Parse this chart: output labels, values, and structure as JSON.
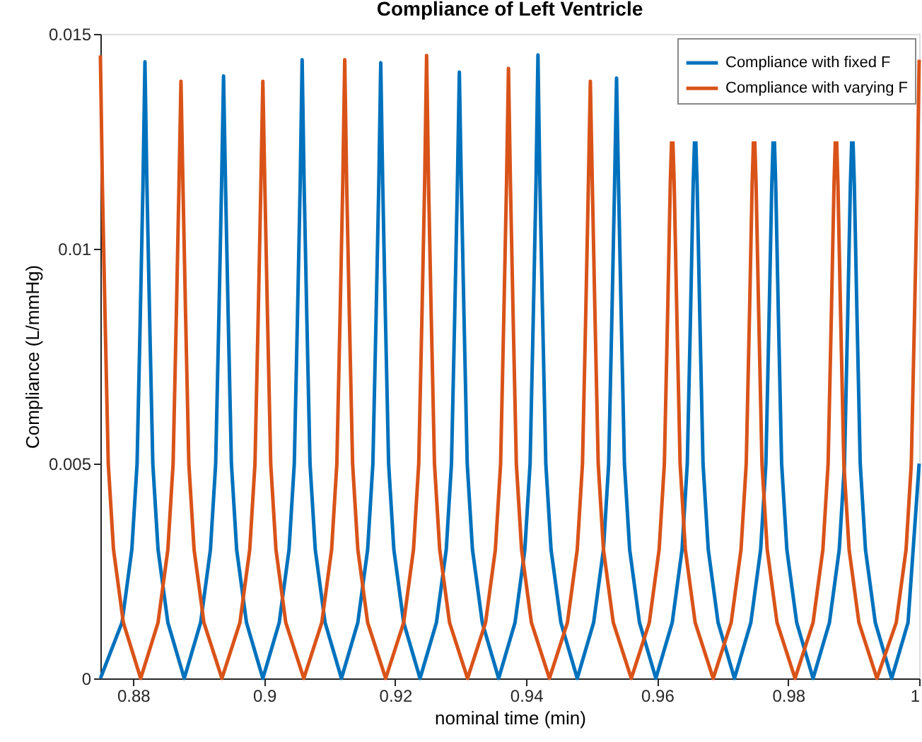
{
  "chart_data": {
    "type": "line",
    "title": "Compliance of Left Ventricle",
    "xlabel": "nominal time (min)",
    "ylabel": "Compliance (L/mmHg)",
    "xlim": [
      0.875,
      1
    ],
    "xticks": [
      0.88,
      0.9,
      0.92,
      0.94,
      0.96,
      0.98,
      1
    ],
    "ylim": [
      0,
      0.015
    ],
    "yticks": [
      0,
      0.005,
      0.01,
      0.015
    ],
    "grid": false,
    "legend": "top right",
    "marker": "none",
    "line_style": "solid",
    "series": [
      {
        "name": "Compliance with fixed F",
        "color": "#0072bd",
        "x": [
          0.875,
          0.8783,
          0.8798,
          0.8806,
          0.8811,
          0.8815,
          0.8818,
          0.8821,
          0.8825,
          0.883,
          0.8838,
          0.8853,
          0.8878,
          0.8903,
          0.8918,
          0.8926,
          0.8931,
          0.8935,
          0.8938,
          0.8941,
          0.8945,
          0.895,
          0.8958,
          0.8973,
          0.8998,
          0.9023,
          0.9038,
          0.9046,
          0.9051,
          0.9055,
          0.9058,
          0.9061,
          0.9065,
          0.907,
          0.9078,
          0.9093,
          0.9118,
          0.9143,
          0.9158,
          0.9166,
          0.9171,
          0.9175,
          0.9178,
          0.9181,
          0.9185,
          0.919,
          0.9198,
          0.9213,
          0.9238,
          0.9263,
          0.9278,
          0.9286,
          0.9291,
          0.9295,
          0.9298,
          0.9301,
          0.9305,
          0.931,
          0.9318,
          0.9333,
          0.9358,
          0.9383,
          0.9398,
          0.9406,
          0.9411,
          0.9415,
          0.9418,
          0.9421,
          0.9425,
          0.943,
          0.9438,
          0.9453,
          0.9478,
          0.9503,
          0.9518,
          0.9526,
          0.9531,
          0.9535,
          0.9538,
          0.9541,
          0.9545,
          0.955,
          0.9558,
          0.9573,
          0.9598,
          0.9623,
          0.9638,
          0.9646,
          0.9651,
          0.9655,
          0.9657,
          0.9658,
          0.9659,
          0.9661,
          0.9665,
          0.967,
          0.9678,
          0.9693,
          0.9718,
          0.9743,
          0.9758,
          0.9766,
          0.9771,
          0.9775,
          0.9777,
          0.9778,
          0.9779,
          0.9781,
          0.9785,
          0.979,
          0.9798,
          0.9813,
          0.9838,
          0.9863,
          0.9878,
          0.9886,
          0.9891,
          0.9895,
          0.9897,
          0.9898,
          0.9899,
          0.9901,
          0.9905,
          0.991,
          0.9918,
          0.9933,
          0.9958,
          0.9983,
          1
        ],
        "values": [
          0,
          0.0013,
          0.003,
          0.005,
          0.0085,
          0.0115,
          0.01435,
          0.0115,
          0.0085,
          0.005,
          0.003,
          0.0013,
          0,
          0.0013,
          0.003,
          0.005,
          0.0085,
          0.0115,
          0.01402,
          0.0115,
          0.0085,
          0.005,
          0.003,
          0.0013,
          0,
          0.0013,
          0.003,
          0.005,
          0.0085,
          0.0115,
          0.0144,
          0.0115,
          0.0085,
          0.005,
          0.003,
          0.0013,
          0,
          0.0013,
          0.003,
          0.005,
          0.0085,
          0.0115,
          0.01433,
          0.0115,
          0.0085,
          0.005,
          0.003,
          0.0013,
          0,
          0.0013,
          0.003,
          0.005,
          0.0085,
          0.0115,
          0.01411,
          0.0115,
          0.0085,
          0.005,
          0.003,
          0.0013,
          0,
          0.0013,
          0.003,
          0.005,
          0.0085,
          0.0115,
          0.01451,
          0.0115,
          0.0085,
          0.005,
          0.003,
          0.0013,
          0,
          0.0013,
          0.003,
          0.005,
          0.0085,
          0.0115,
          0.01397,
          0.0115,
          0.0085,
          0.005,
          0.003,
          0.0013,
          0,
          0.0013,
          0.003,
          0.005,
          0.0085,
          0.0115,
          0.0125,
          null,
          0.0125,
          0.0115,
          0.0085,
          0.005,
          0.003,
          0.0013,
          0,
          0.0013,
          0.003,
          0.005,
          0.0085,
          0.0115,
          0.0125,
          null,
          0.0125,
          0.0115,
          0.0085,
          0.005,
          0.003,
          0.0013,
          0,
          0.0013,
          0.003,
          0.005,
          0.0085,
          0.0115,
          0.0125,
          null,
          0.0125,
          0.0115,
          0.0085,
          0.005,
          0.003,
          0.0013,
          0,
          0.0013,
          0.005
        ]
      },
      {
        "name": "Compliance with varying F",
        "color": "#d95319",
        "x": [
          0.875,
          0.8753,
          0.8757,
          0.8762,
          0.877,
          0.8785,
          0.88115,
          0.8838,
          0.8853,
          0.8861,
          0.8866,
          0.887,
          0.8873,
          0.8876,
          0.888,
          0.8885,
          0.8893,
          0.8908,
          0.89355,
          0.8963,
          0.8978,
          0.8986,
          0.8991,
          0.8995,
          0.8998,
          0.9001,
          0.9005,
          0.901,
          0.9018,
          0.9033,
          0.90605,
          0.9088,
          0.9103,
          0.9111,
          0.9116,
          0.912,
          0.9123,
          0.9126,
          0.913,
          0.9135,
          0.9143,
          0.9158,
          0.91855,
          0.9213,
          0.9228,
          0.9236,
          0.9241,
          0.9245,
          0.9248,
          0.9251,
          0.9255,
          0.926,
          0.9268,
          0.9283,
          0.93105,
          0.9338,
          0.9353,
          0.9361,
          0.9366,
          0.937,
          0.9373,
          0.9376,
          0.938,
          0.9385,
          0.9393,
          0.9408,
          0.94355,
          0.9463,
          0.9478,
          0.9486,
          0.9491,
          0.9495,
          0.9498,
          0.9501,
          0.9505,
          0.951,
          0.9518,
          0.9533,
          0.95605,
          0.9588,
          0.9603,
          0.9611,
          0.9616,
          0.962,
          0.9622,
          0.9623,
          0.9624,
          0.9626,
          0.963,
          0.9635,
          0.9643,
          0.9658,
          0.96855,
          0.9713,
          0.9728,
          0.9736,
          0.9741,
          0.9745,
          0.9747,
          0.9748,
          0.9749,
          0.9751,
          0.9755,
          0.976,
          0.9768,
          0.9783,
          0.98105,
          0.9838,
          0.9853,
          0.9861,
          0.9866,
          0.987,
          0.9872,
          0.9873,
          0.9874,
          0.9876,
          0.988,
          0.9885,
          0.9893,
          0.9908,
          0.99355,
          0.9965,
          0.998,
          0.9988,
          0.9993,
          0.9997,
          1
        ],
        "values": [
          0.0145,
          0.0115,
          0.0085,
          0.005,
          0.003,
          0.0013,
          0,
          0.0013,
          0.003,
          0.005,
          0.0085,
          0.0115,
          0.0139,
          0.0115,
          0.0085,
          0.005,
          0.003,
          0.0013,
          0,
          0.0013,
          0.003,
          0.005,
          0.0085,
          0.0115,
          0.0139,
          0.0115,
          0.0085,
          0.005,
          0.003,
          0.0013,
          0,
          0.0013,
          0.003,
          0.005,
          0.0085,
          0.0115,
          0.0144,
          0.0115,
          0.0085,
          0.005,
          0.003,
          0.0013,
          0,
          0.0013,
          0.003,
          0.005,
          0.0085,
          0.0115,
          0.0145,
          0.0115,
          0.0085,
          0.005,
          0.003,
          0.0013,
          0,
          0.0013,
          0.003,
          0.005,
          0.0085,
          0.0115,
          0.0142,
          0.0115,
          0.0085,
          0.005,
          0.003,
          0.0013,
          0,
          0.0013,
          0.003,
          0.005,
          0.0085,
          0.0115,
          0.0139,
          0.0115,
          0.0085,
          0.005,
          0.003,
          0.0013,
          0,
          0.0013,
          0.003,
          0.005,
          0.0085,
          0.0115,
          0.0125,
          null,
          0.0125,
          0.0115,
          0.0085,
          0.005,
          0.003,
          0.0013,
          0,
          0.0013,
          0.003,
          0.005,
          0.0085,
          0.0115,
          0.0125,
          null,
          0.0125,
          0.0115,
          0.0085,
          0.005,
          0.003,
          0.0013,
          0,
          0.0013,
          0.003,
          0.005,
          0.0085,
          0.0115,
          0.0125,
          null,
          0.0125,
          0.0115,
          0.0085,
          0.005,
          0.003,
          0.0013,
          0,
          0.0013,
          0.003,
          0.005,
          0.0085,
          0.0115,
          0.0144
        ]
      }
    ]
  }
}
